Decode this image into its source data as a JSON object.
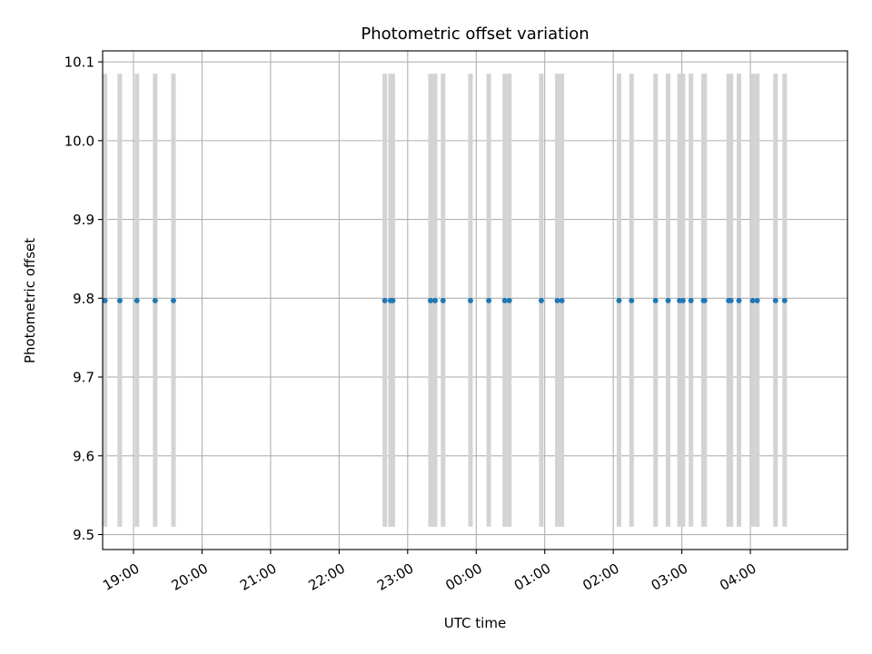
{
  "chart_data": {
    "type": "scatter",
    "title": "Photometric offset variation",
    "xlabel": "UTC time",
    "ylabel": "Photometric offset",
    "x_axis_kind": "time",
    "xlim": [
      "18:33",
      "05:25"
    ],
    "ylim": [
      9.481,
      10.114
    ],
    "grid": true,
    "xticks": [
      "19:00",
      "20:00",
      "21:00",
      "22:00",
      "23:00",
      "00:00",
      "01:00",
      "02:00",
      "03:00",
      "04:00"
    ],
    "yticks": [
      "9.5",
      "9.6",
      "9.7",
      "9.8",
      "9.9",
      "10.0",
      "10.1"
    ],
    "yticks_values": [
      9.5,
      9.6,
      9.7,
      9.8,
      9.9,
      10.0,
      10.1
    ],
    "error_bars": {
      "low": 9.51,
      "high": 10.085,
      "color": "#d3d3d3"
    },
    "points_color": "#1f77b4",
    "points": [
      {
        "x": "18:35",
        "y": 9.797
      },
      {
        "x": "18:48",
        "y": 9.797
      },
      {
        "x": "19:03",
        "y": 9.797
      },
      {
        "x": "19:19",
        "y": 9.797
      },
      {
        "x": "19:35",
        "y": 9.797
      },
      {
        "x": "22:40",
        "y": 9.797
      },
      {
        "x": "22:45",
        "y": 9.797
      },
      {
        "x": "22:47",
        "y": 9.797
      },
      {
        "x": "23:20",
        "y": 9.797
      },
      {
        "x": "23:24",
        "y": 9.797
      },
      {
        "x": "23:31",
        "y": 9.797
      },
      {
        "x": "23:55",
        "y": 9.797
      },
      {
        "x": "00:11",
        "y": 9.797
      },
      {
        "x": "00:25",
        "y": 9.797
      },
      {
        "x": "00:29",
        "y": 9.797
      },
      {
        "x": "00:57",
        "y": 9.797
      },
      {
        "x": "01:11",
        "y": 9.797
      },
      {
        "x": "01:15",
        "y": 9.797
      },
      {
        "x": "02:05",
        "y": 9.797
      },
      {
        "x": "02:16",
        "y": 9.797
      },
      {
        "x": "02:37",
        "y": 9.797
      },
      {
        "x": "02:48",
        "y": 9.797
      },
      {
        "x": "02:58",
        "y": 9.797
      },
      {
        "x": "03:01",
        "y": 9.797
      },
      {
        "x": "03:08",
        "y": 9.797
      },
      {
        "x": "03:19",
        "y": 9.797
      },
      {
        "x": "03:20",
        "y": 9.797
      },
      {
        "x": "03:41",
        "y": 9.797
      },
      {
        "x": "03:43",
        "y": 9.797
      },
      {
        "x": "03:50",
        "y": 9.797
      },
      {
        "x": "04:02",
        "y": 9.797
      },
      {
        "x": "04:06",
        "y": 9.797
      },
      {
        "x": "04:22",
        "y": 9.797
      },
      {
        "x": "04:30",
        "y": 9.797
      }
    ]
  }
}
